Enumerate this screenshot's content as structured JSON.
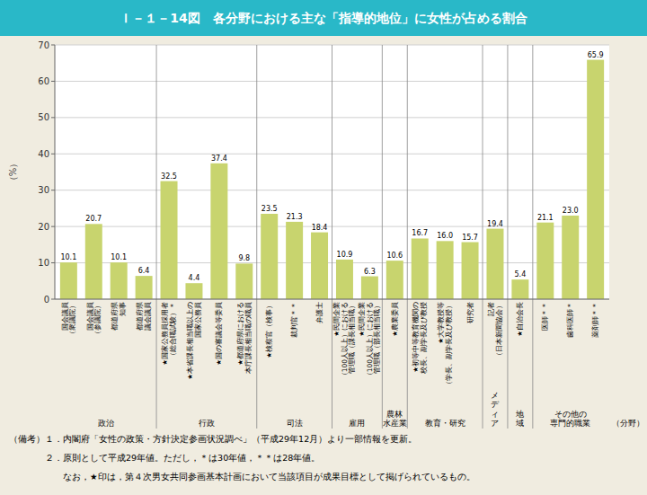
{
  "chart_data": {
    "type": "bar",
    "title": "Ｉ－１－14図　各分野における主な「指導的地位」に女性が占める割合",
    "ylabel": "（%）",
    "xlabel": "（分野）",
    "categories": [
      "国会議員\n（衆議院）",
      "国会議員\n（参議院）",
      "都道府県\n知事",
      "都道府県\n議会議員",
      "★国家公務員採用者\n（総合職試験）＊",
      "★本省課長相当職以上の\n国家公務員",
      "★国の審議会等委員",
      "★都道府県における\n本庁課長相当職の職員",
      "★検察官（検事）",
      "裁判官＊＊",
      "弁護士",
      "★民間企業\n（100人以上）における\n管理職（課長相当職）",
      "★民間企業\n（100人以上）における\n管理職（部長相当職）",
      "★農業委員",
      "★初等中等教育機関の\n校長、副学長及び教授",
      "★大学教授等\n（学長、副学長及び教授）",
      "研究者",
      "記者\n（日本新聞協会）",
      "★自治会長",
      "医師＊＊",
      "歯科医師＊",
      "薬剤師＊＊"
    ],
    "values": [
      10.1,
      20.7,
      10.1,
      6.4,
      32.5,
      4.4,
      37.4,
      9.8,
      23.5,
      21.3,
      18.4,
      10.9,
      6.3,
      10.6,
      16.7,
      16.0,
      15.7,
      19.4,
      5.4,
      21.1,
      23.0,
      65.9
    ],
    "value_labels": [
      "10.1",
      "20.7",
      "10.1",
      "6.4",
      "32.5",
      "4.4",
      "37.4",
      "9.8",
      "23.5",
      "21.3",
      "18.4",
      "10.9",
      "6.3",
      "10.6",
      "16.7",
      "16.0",
      "15.7",
      "19.4",
      "5.4",
      "21.1",
      "23.0",
      "65.9"
    ],
    "color": "#c8d46e",
    "ylim": [
      0,
      70
    ],
    "yticks": [
      0,
      10,
      20,
      30,
      40,
      50,
      60,
      70
    ],
    "grid": true,
    "data_labels": true,
    "sectors": [
      {
        "label": "政治",
        "span": [
          0,
          3
        ]
      },
      {
        "label": "行政",
        "span": [
          4,
          7
        ]
      },
      {
        "label": "司法",
        "span": [
          8,
          10
        ]
      },
      {
        "label": "雇用",
        "span": [
          11,
          12
        ]
      },
      {
        "label": "農林\n水産業",
        "span": [
          13,
          13
        ]
      },
      {
        "label": "教育・研究",
        "span": [
          14,
          16
        ]
      },
      {
        "label": "メ\nデ\nィ\nア",
        "span": [
          17,
          17
        ]
      },
      {
        "label": "地\n域",
        "span": [
          18,
          18
        ]
      },
      {
        "label": "その他の\n専門的職業",
        "span": [
          19,
          21
        ]
      }
    ],
    "notes": [
      "（備考）１．内閣府「女性の政策・方針決定参画状況調べ」（平成29年12月）より一部情報を更新。",
      "　　　　２．原則として平成29年値。ただし，＊は30年値，＊＊は28年値。",
      "　　　　　　なお，★印は，第４次男女共同参画基本計画において当該項目が成果目標として掲げられているもの。"
    ]
  }
}
